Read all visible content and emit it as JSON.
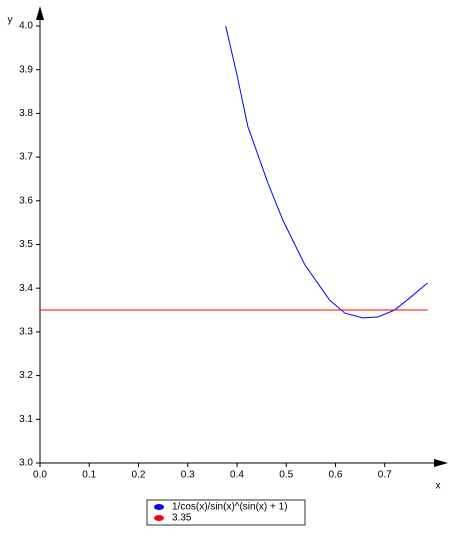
{
  "chart_data": {
    "type": "line",
    "xlabel": "x",
    "ylabel": "y",
    "xlim": [
      0,
      0.8
    ],
    "ylim": [
      3.0,
      4.0
    ],
    "xticks": [
      {
        "value": 0,
        "label": "0.0"
      },
      0.1,
      0.2,
      0.3,
      0.4,
      0.5,
      0.6,
      0.7
    ],
    "yticks": [
      {
        "value": 3,
        "label": "3.0"
      },
      3.1,
      3.2,
      3.3,
      3.4,
      3.5,
      3.6,
      3.7,
      3.8,
      3.9,
      {
        "value": 4,
        "label": "4.0"
      }
    ],
    "series": [
      {
        "name": "1/cos(x)/sin(x)^(sin(x) + 1)",
        "color": "#0000ff",
        "x": [
          0.377,
          0.4,
          0.422,
          0.463,
          0.493,
          0.538,
          0.588,
          0.619,
          0.655,
          0.686,
          0.72,
          0.751,
          0.787
        ],
        "values": [
          4.0,
          3.888,
          3.77,
          3.64,
          3.556,
          3.453,
          3.373,
          3.343,
          3.332,
          3.334,
          3.35,
          3.378,
          3.412
        ]
      },
      {
        "name": "3.35",
        "color": "#ff0000",
        "x": [
          0,
          0.787
        ],
        "values": [
          3.35,
          3.35
        ]
      }
    ]
  }
}
